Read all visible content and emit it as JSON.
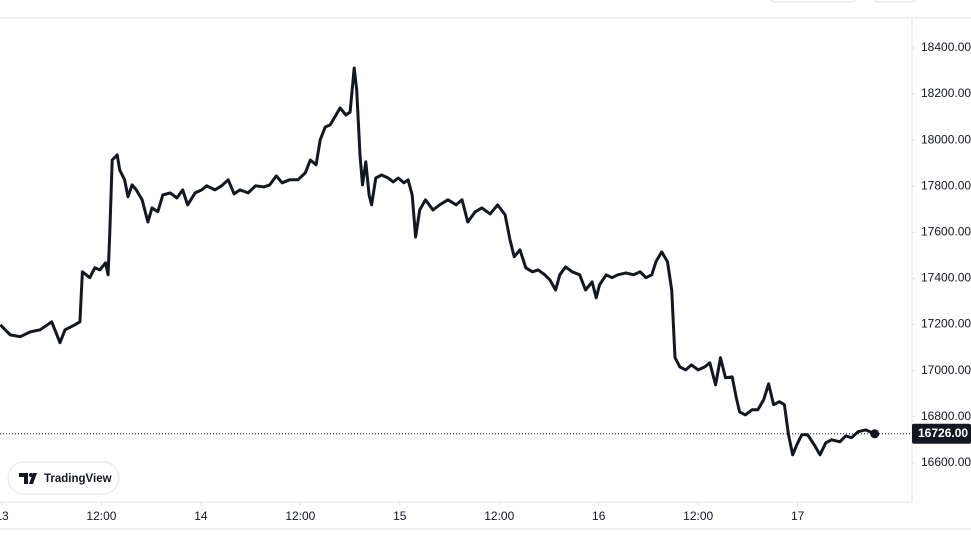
{
  "chart_data": {
    "type": "line",
    "color": "#131722",
    "watermark": "TradingView",
    "x": [
      -0.2,
      1.0,
      2.2,
      3.4,
      4.6,
      6.0,
      7.0,
      7.6,
      8.8,
      9.4,
      9.7,
      10.6,
      11.2,
      11.8,
      12.5,
      12.8,
      13.0,
      13.3,
      13.9,
      14.2,
      14.8,
      15.2,
      15.7,
      16.2,
      16.9,
      17.6,
      18.1,
      18.8,
      19.4,
      20.3,
      21.1,
      21.8,
      22.4,
      23.3,
      24.1,
      24.7,
      25.7,
      26.5,
      27.3,
      28.0,
      28.7,
      29.7,
      30.6,
      31.6,
      32.3,
      33.1,
      33.8,
      34.7,
      35.7,
      36.6,
      37.2,
      37.9,
      38.4,
      39.0,
      39.6,
      40.3,
      40.8,
      41.5,
      42.0,
      42.5,
      42.8,
      43.2,
      43.5,
      43.9,
      44.3,
      44.6,
      45.1,
      45.8,
      46.6,
      47.2,
      47.8,
      48.5,
      49.0,
      49.5,
      49.9,
      50.4,
      51.1,
      52.0,
      52.8,
      53.8,
      54.8,
      55.5,
      56.2,
      57.1,
      57.9,
      58.9,
      59.8,
      60.7,
      61.3,
      61.8,
      62.5,
      63.2,
      64.0,
      64.7,
      65.5,
      66.1,
      66.8,
      67.3,
      68.0,
      68.8,
      69.7,
      70.4,
      71.2,
      71.7,
      72.1,
      72.9,
      73.6,
      74.3,
      75.3,
      76.2,
      77.0,
      77.7,
      78.4,
      78.9,
      79.6,
      80.3,
      80.8,
      81.2,
      81.8,
      82.5,
      83.2,
      84.0,
      84.8,
      85.4,
      86.1,
      86.7,
      87.3,
      88.1,
      88.6,
      89.0,
      89.7,
      90.5,
      91.2,
      91.9,
      92.5,
      93.1,
      93.8,
      94.4,
      94.9,
      95.4,
      95.9,
      96.5,
      97.2,
      98.0,
      98.7,
      99.4,
      100.1,
      101.1,
      101.8,
      102.5,
      103.3,
      104.2,
      105.3
    ],
    "values": [
      17199,
      17155,
      17147,
      17168,
      17177,
      17212,
      17121,
      17177,
      17199,
      17212,
      17429,
      17403,
      17446,
      17437,
      17468,
      17416,
      17589,
      17914,
      17936,
      17871,
      17828,
      17754,
      17806,
      17784,
      17741,
      17645,
      17706,
      17689,
      17762,
      17771,
      17749,
      17784,
      17719,
      17771,
      17784,
      17802,
      17784,
      17802,
      17828,
      17767,
      17784,
      17771,
      17802,
      17797,
      17806,
      17845,
      17815,
      17828,
      17828,
      17858,
      17914,
      17893,
      18001,
      18057,
      18066,
      18109,
      18140,
      18109,
      18122,
      18313,
      18218,
      17936,
      17806,
      17906,
      17762,
      17719,
      17836,
      17849,
      17836,
      17819,
      17836,
      17815,
      17828,
      17762,
      17580,
      17697,
      17741,
      17697,
      17719,
      17741,
      17719,
      17741,
      17645,
      17689,
      17706,
      17680,
      17719,
      17676,
      17567,
      17494,
      17524,
      17446,
      17429,
      17437,
      17416,
      17394,
      17350,
      17416,
      17450,
      17429,
      17416,
      17350,
      17385,
      17316,
      17372,
      17416,
      17403,
      17416,
      17424,
      17416,
      17429,
      17403,
      17416,
      17472,
      17515,
      17472,
      17350,
      17056,
      17016,
      17003,
      17025,
      17003,
      17016,
      17034,
      16938,
      17056,
      16969,
      16973,
      16882,
      16821,
      16808,
      16830,
      16830,
      16873,
      16943,
      16852,
      16865,
      16852,
      16722,
      16635,
      16678,
      16722,
      16722,
      16678,
      16635,
      16687,
      16700,
      16691,
      16717,
      16709,
      16735,
      16743,
      16726
    ],
    "xlim": [
      -0.24,
      109.8
    ],
    "ylim": [
      16430,
      18530
    ],
    "xticks": [
      {
        "value": 0,
        "label": "13"
      },
      {
        "value": 12,
        "label": "12:00"
      },
      {
        "value": 24,
        "label": "14"
      },
      {
        "value": 36,
        "label": "12:00"
      },
      {
        "value": 48,
        "label": "15"
      },
      {
        "value": 60,
        "label": "12:00"
      },
      {
        "value": 72,
        "label": "16"
      },
      {
        "value": 84,
        "label": "12:00"
      },
      {
        "value": 96,
        "label": "17"
      }
    ],
    "yticks": [
      {
        "value": 16600,
        "label": "16600.00"
      },
      {
        "value": 16800,
        "label": "16800.00"
      },
      {
        "value": 17000,
        "label": "17000.00"
      },
      {
        "value": 17200,
        "label": "17200.00"
      },
      {
        "value": 17400,
        "label": "17400.00"
      },
      {
        "value": 17600,
        "label": "17600.00"
      },
      {
        "value": 17800,
        "label": "17800.00"
      },
      {
        "value": 18000,
        "label": "18000.00"
      },
      {
        "value": 18200,
        "label": "18200.00"
      },
      {
        "value": 18400,
        "label": "18400.00"
      }
    ],
    "last_price": {
      "value": 16726,
      "label": "16726.00"
    }
  }
}
